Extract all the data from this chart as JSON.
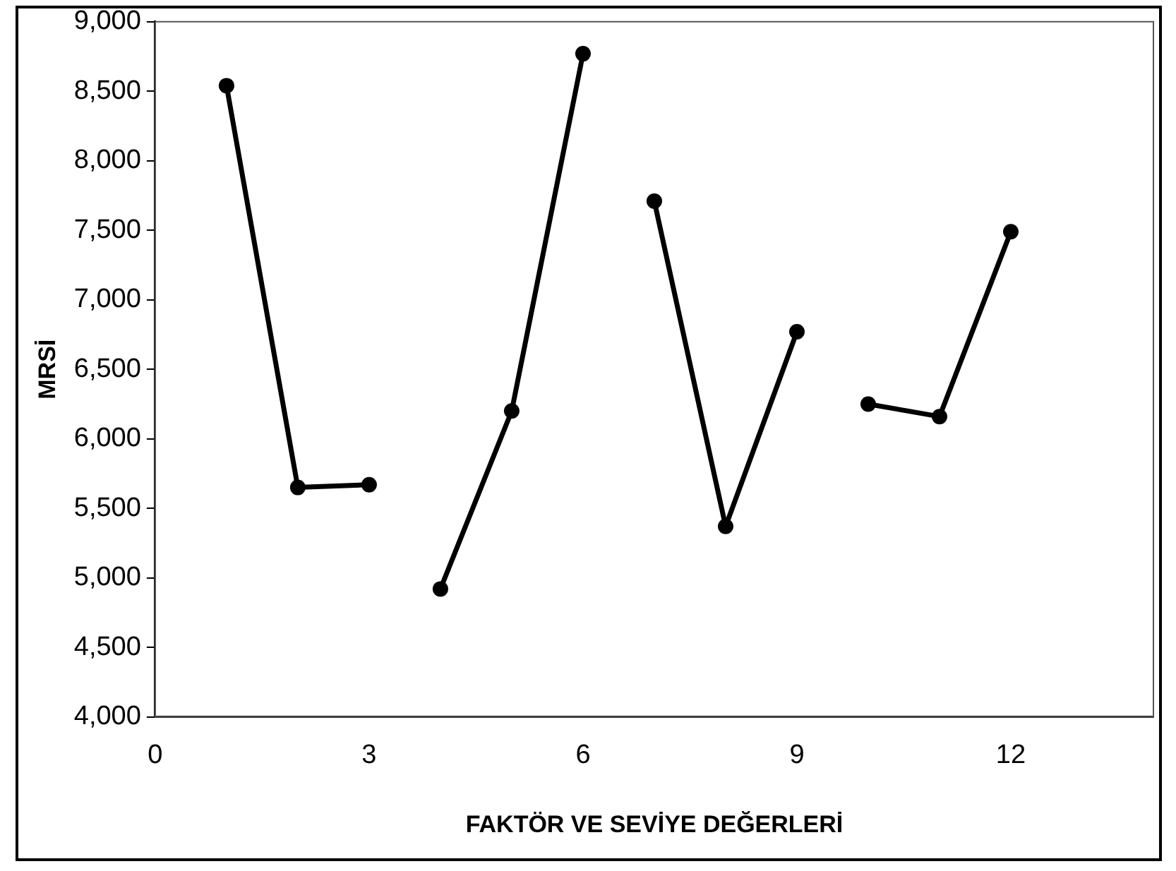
{
  "chart_data": {
    "type": "line",
    "xlabel": "FAKTÖR VE SEVİYE DEĞERLERİ",
    "ylabel": "MRSİ",
    "xlim": [
      0,
      14
    ],
    "xticks": [
      0,
      3,
      6,
      9,
      12
    ],
    "ylim": [
      4000,
      9000
    ],
    "yticks": [
      {
        "value": 4000,
        "label": "4,000"
      },
      {
        "value": 4500,
        "label": "4,500"
      },
      {
        "value": 5000,
        "label": "5,000"
      },
      {
        "value": 5500,
        "label": "5,500"
      },
      {
        "value": 6000,
        "label": "6,000"
      },
      {
        "value": 6500,
        "label": "6,500"
      },
      {
        "value": 7000,
        "label": "7,000"
      },
      {
        "value": 7500,
        "label": "7,500"
      },
      {
        "value": 8000,
        "label": "8,000"
      },
      {
        "value": 8500,
        "label": "8,500"
      },
      {
        "value": 9000,
        "label": "9,000"
      }
    ],
    "series": [
      {
        "color": "#000000",
        "x": [
          1,
          2,
          3
        ],
        "values": [
          8540,
          5650,
          5670
        ]
      },
      {
        "color": "#000000",
        "x": [
          4,
          5,
          6
        ],
        "values": [
          4920,
          6200,
          8770
        ]
      },
      {
        "color": "#000000",
        "x": [
          7,
          8,
          9
        ],
        "values": [
          7710,
          5370,
          6770
        ]
      },
      {
        "color": "#000000",
        "x": [
          10,
          11,
          12
        ],
        "values": [
          6250,
          6160,
          7490
        ]
      }
    ],
    "marker": "circle",
    "line_style": "solid",
    "grid": false,
    "legend": false
  }
}
